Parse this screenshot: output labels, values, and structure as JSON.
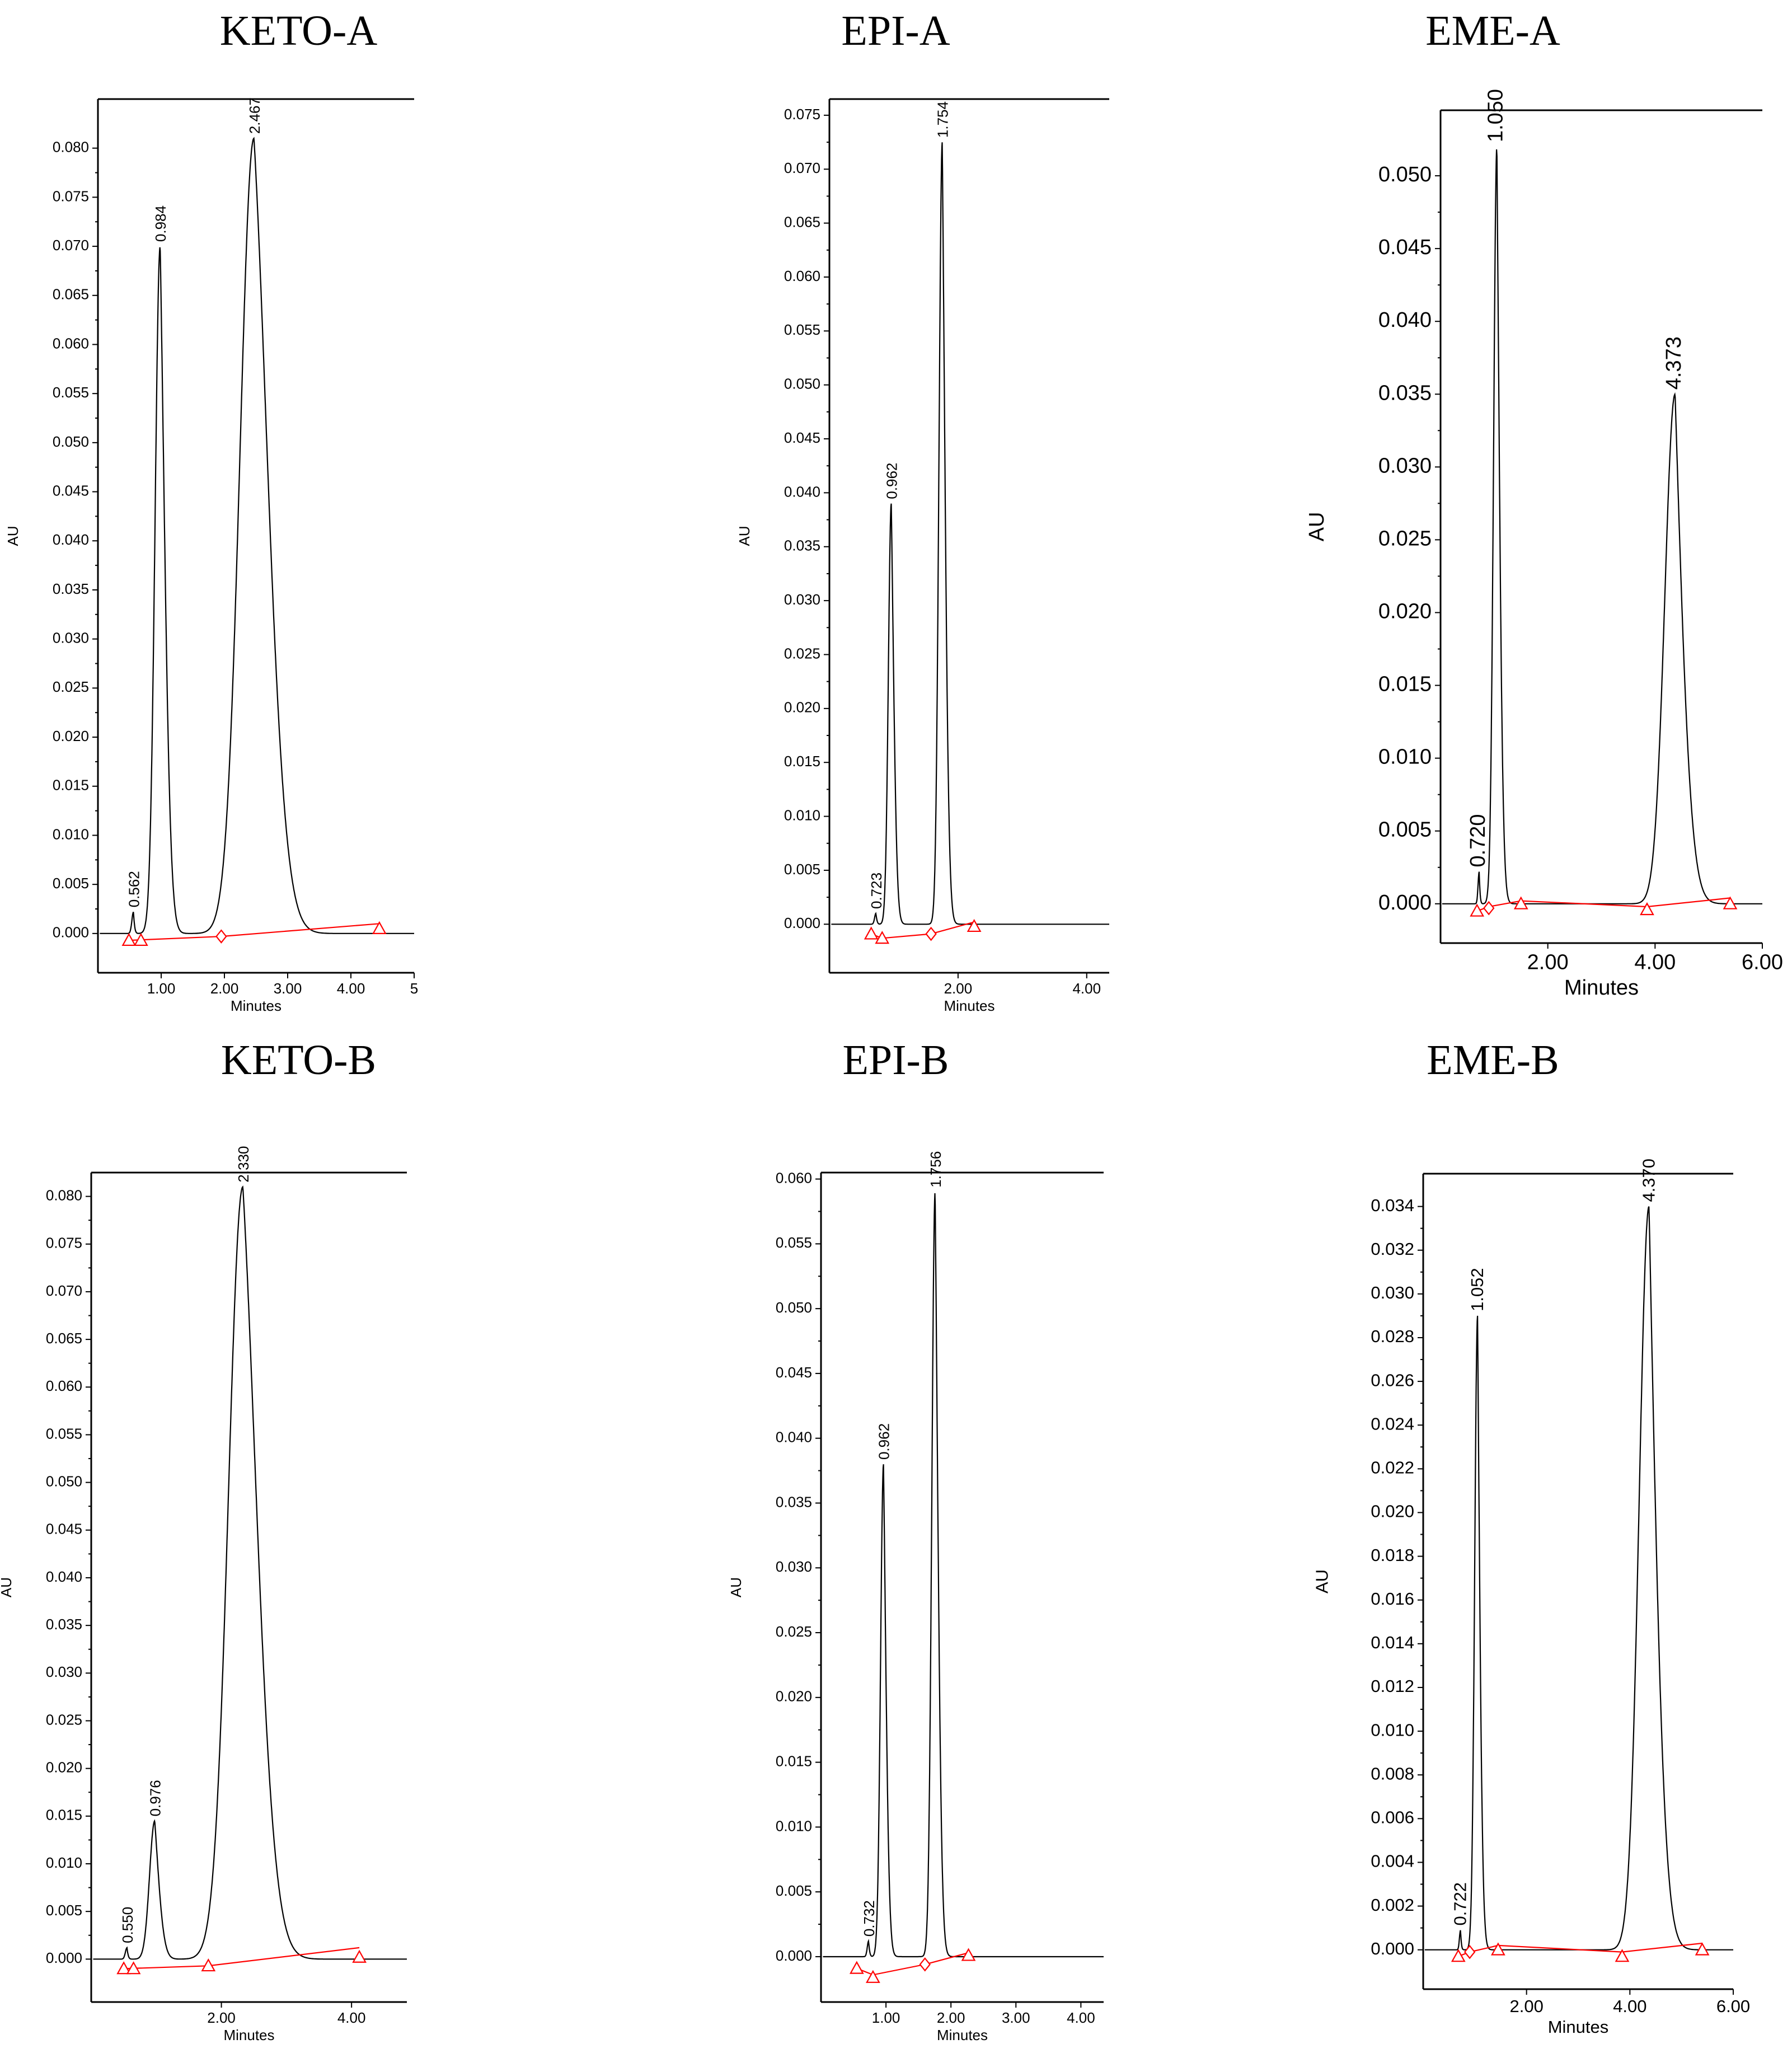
{
  "chart_data": [
    {
      "id": "keto-a",
      "type": "line",
      "title": "KETO-A",
      "xlabel": "Minutes",
      "ylabel": "AU",
      "xlim": [
        0,
        5.0
      ],
      "ylim": [
        -0.004,
        0.085
      ],
      "xticks": [
        1,
        2,
        3,
        4,
        5
      ],
      "xtick_labels": [
        "1.00",
        "2.00",
        "3.00",
        "4.00",
        "5"
      ],
      "yticks": [
        0,
        0.005,
        0.01,
        0.015,
        0.02,
        0.025,
        0.03,
        0.035,
        0.04,
        0.045,
        0.05,
        0.055,
        0.06,
        0.065,
        0.07,
        0.075,
        0.08
      ],
      "ytick_labels": [
        "0.000",
        "0.005",
        "0.010",
        "0.015",
        "0.020",
        "0.025",
        "0.030",
        "0.035",
        "0.040",
        "0.045",
        "0.050",
        "0.055",
        "0.060",
        "0.065",
        "0.070",
        "0.075",
        "0.080"
      ],
      "peaks": [
        {
          "rt": 0.562,
          "label": "0.562",
          "height": 0.0022,
          "w": 0.025,
          "tail": 0.02
        },
        {
          "rt": 0.984,
          "label": "0.984",
          "height": 0.07,
          "w": 0.08,
          "tail": 0.2
        },
        {
          "rt": 2.467,
          "label": "2.467",
          "height": 0.081,
          "w": 0.22,
          "tail": 0.75
        }
      ],
      "markers": [
        {
          "x": 0.49,
          "y": -0.0007,
          "shape": "triangle"
        },
        {
          "x": 0.68,
          "y": -0.0007,
          "shape": "triangle"
        },
        {
          "x": 1.95,
          "y": -0.0003,
          "shape": "diamond"
        },
        {
          "x": 4.45,
          "y": 0.0005,
          "shape": "triangle"
        }
      ],
      "baseline": [
        [
          0.49,
          -0.0007
        ],
        [
          1.95,
          -0.0003
        ],
        [
          4.45,
          0.001
        ]
      ]
    },
    {
      "id": "epi-a",
      "type": "line",
      "title": "EPI-A",
      "xlabel": "Minutes",
      "ylabel": "AU",
      "xlim": [
        0,
        4.35
      ],
      "ylim": [
        -0.0045,
        0.0765
      ],
      "xticks": [
        2,
        4
      ],
      "xtick_labels": [
        "2.00",
        "4.00"
      ],
      "yticks": [
        0,
        0.005,
        0.01,
        0.015,
        0.02,
        0.025,
        0.03,
        0.035,
        0.04,
        0.045,
        0.05,
        0.055,
        0.06,
        0.065,
        0.07,
        0.075
      ],
      "ytick_labels": [
        "0.000",
        "0.005",
        "0.010",
        "0.015",
        "0.020",
        "0.025",
        "0.030",
        "0.035",
        "0.040",
        "0.045",
        "0.050",
        "0.055",
        "0.060",
        "0.065",
        "0.070",
        "0.075"
      ],
      "peaks": [
        {
          "rt": 0.723,
          "label": "0.723",
          "height": 0.001,
          "w": 0.02,
          "tail": 0.02
        },
        {
          "rt": 0.962,
          "label": "0.962",
          "height": 0.039,
          "w": 0.045,
          "tail": 0.1
        },
        {
          "rt": 1.754,
          "label": "1.754",
          "height": 0.0725,
          "w": 0.05,
          "tail": 0.12
        }
      ],
      "markers": [
        {
          "x": 0.65,
          "y": -0.0009,
          "shape": "triangle"
        },
        {
          "x": 0.82,
          "y": -0.0013,
          "shape": "triangle"
        },
        {
          "x": 1.58,
          "y": -0.0009,
          "shape": "diamond"
        },
        {
          "x": 2.25,
          "y": -0.0002,
          "shape": "triangle"
        }
      ],
      "baseline": [
        [
          0.65,
          -0.0009
        ],
        [
          0.82,
          -0.0013
        ],
        [
          1.58,
          -0.0009
        ],
        [
          2.25,
          0.0002
        ]
      ]
    },
    {
      "id": "eme-a",
      "type": "line",
      "title": "EME-A",
      "xlabel": "Minutes",
      "ylabel": "AU",
      "xlim": [
        0,
        6.0
      ],
      "ylim": [
        -0.0027,
        0.0545
      ],
      "xticks": [
        2,
        4,
        6
      ],
      "xtick_labels": [
        "2.00",
        "4.00",
        "6.00"
      ],
      "yticks": [
        0,
        0.005,
        0.01,
        0.015,
        0.02,
        0.025,
        0.03,
        0.035,
        0.04,
        0.045,
        0.05
      ],
      "ytick_labels": [
        "0.000",
        "0.005",
        "0.010",
        "0.015",
        "0.020",
        "0.025",
        "0.030",
        "0.035",
        "0.040",
        "0.045",
        "0.050"
      ],
      "peaks": [
        {
          "rt": 0.72,
          "label": "0.720",
          "height": 0.0022,
          "w": 0.02,
          "tail": 0.02
        },
        {
          "rt": 1.05,
          "label": "1.050",
          "height": 0.052,
          "w": 0.06,
          "tail": 0.12
        },
        {
          "rt": 4.373,
          "label": "4.373",
          "height": 0.035,
          "w": 0.19,
          "tail": 0.3
        }
      ],
      "markers": [
        {
          "x": 0.68,
          "y": -0.0005,
          "shape": "triangle"
        },
        {
          "x": 0.9,
          "y": -0.0003,
          "shape": "diamond"
        },
        {
          "x": 1.5,
          "y": 0.0,
          "shape": "triangle"
        },
        {
          "x": 3.85,
          "y": -0.0004,
          "shape": "triangle"
        },
        {
          "x": 5.4,
          "y": 0.0,
          "shape": "triangle"
        }
      ],
      "baseline": [
        [
          0.68,
          -0.0005
        ],
        [
          0.9,
          -0.0002
        ],
        [
          1.5,
          0.0002
        ],
        [
          3.85,
          -0.0002
        ],
        [
          5.4,
          0.0004
        ]
      ]
    },
    {
      "id": "keto-b",
      "type": "line",
      "title": "KETO-B",
      "xlabel": "Minutes",
      "ylabel": "AU",
      "xlim": [
        0,
        4.85
      ],
      "ylim": [
        -0.0045,
        0.0825
      ],
      "xticks": [
        2,
        4
      ],
      "xtick_labels": [
        "2.00",
        "4.00"
      ],
      "yticks": [
        0,
        0.005,
        0.01,
        0.015,
        0.02,
        0.025,
        0.03,
        0.035,
        0.04,
        0.045,
        0.05,
        0.055,
        0.06,
        0.065,
        0.07,
        0.075,
        0.08
      ],
      "ytick_labels": [
        "0.000",
        "0.005",
        "0.010",
        "0.015",
        "0.020",
        "0.025",
        "0.030",
        "0.035",
        "0.040",
        "0.045",
        "0.050",
        "0.055",
        "0.060",
        "0.065",
        "0.070",
        "0.075",
        "0.080"
      ],
      "peaks": [
        {
          "rt": 0.55,
          "label": "0.550",
          "height": 0.0012,
          "w": 0.025,
          "tail": 0.02
        },
        {
          "rt": 0.976,
          "label": "0.976",
          "height": 0.0145,
          "w": 0.08,
          "tail": 0.15
        },
        {
          "rt": 2.33,
          "label": "2.330",
          "height": 0.081,
          "w": 0.22,
          "tail": 0.7
        }
      ],
      "markers": [
        {
          "x": 0.5,
          "y": -0.001,
          "shape": "triangle"
        },
        {
          "x": 0.65,
          "y": -0.001,
          "shape": "triangle"
        },
        {
          "x": 1.8,
          "y": -0.0007,
          "shape": "triangle"
        },
        {
          "x": 4.12,
          "y": 0.0002,
          "shape": "triangle"
        }
      ],
      "baseline": [
        [
          0.5,
          -0.001
        ],
        [
          1.8,
          -0.0007
        ],
        [
          4.12,
          0.0012
        ]
      ]
    },
    {
      "id": "epi-b",
      "type": "line",
      "title": "EPI-B",
      "xlabel": "Minutes",
      "ylabel": "AU",
      "xlim": [
        0,
        4.35
      ],
      "ylim": [
        -0.0035,
        0.0605
      ],
      "xticks": [
        1,
        2,
        3,
        4
      ],
      "xtick_labels": [
        "1.00",
        "2.00",
        "3.00",
        "4.00"
      ],
      "yticks": [
        0,
        0.005,
        0.01,
        0.015,
        0.02,
        0.025,
        0.03,
        0.035,
        0.04,
        0.045,
        0.05,
        0.055,
        0.06
      ],
      "ytick_labels": [
        "0.000",
        "0.005",
        "0.010",
        "0.015",
        "0.020",
        "0.025",
        "0.030",
        "0.035",
        "0.040",
        "0.045",
        "0.050",
        "0.055",
        "0.060"
      ],
      "peaks": [
        {
          "rt": 0.732,
          "label": "0.732",
          "height": 0.0012,
          "w": 0.02,
          "tail": 0.02
        },
        {
          "rt": 0.962,
          "label": "0.962",
          "height": 0.038,
          "w": 0.045,
          "tail": 0.1
        },
        {
          "rt": 1.756,
          "label": "1.756",
          "height": 0.059,
          "w": 0.05,
          "tail": 0.12
        }
      ],
      "markers": [
        {
          "x": 0.55,
          "y": -0.0009,
          "shape": "triangle"
        },
        {
          "x": 0.8,
          "y": -0.0016,
          "shape": "triangle"
        },
        {
          "x": 1.6,
          "y": -0.0006,
          "shape": "diamond"
        },
        {
          "x": 2.27,
          "y": 0.0001,
          "shape": "triangle"
        }
      ],
      "baseline": [
        [
          0.55,
          -0.0009
        ],
        [
          0.8,
          -0.0014
        ],
        [
          1.6,
          -0.0006
        ],
        [
          2.27,
          0.0003
        ]
      ]
    },
    {
      "id": "eme-b",
      "type": "line",
      "title": "EME-B",
      "xlabel": "Minutes",
      "ylabel": "AU",
      "xlim": [
        0,
        6.0
      ],
      "ylim": [
        -0.0018,
        0.0355
      ],
      "xticks": [
        2,
        4,
        6
      ],
      "xtick_labels": [
        "2.00",
        "4.00",
        "6.00"
      ],
      "yticks": [
        0,
        0.002,
        0.004,
        0.006,
        0.008,
        0.01,
        0.012,
        0.014,
        0.016,
        0.018,
        0.02,
        0.022,
        0.024,
        0.026,
        0.028,
        0.03,
        0.032,
        0.034
      ],
      "ytick_labels": [
        "0.000",
        "0.002",
        "0.004",
        "0.006",
        "0.008",
        "0.010",
        "0.012",
        "0.014",
        "0.016",
        "0.018",
        "0.020",
        "0.022",
        "0.024",
        "0.026",
        "0.028",
        "0.030",
        "0.032",
        "0.034"
      ],
      "peaks": [
        {
          "rt": 0.722,
          "label": "0.722",
          "height": 0.0009,
          "w": 0.02,
          "tail": 0.02
        },
        {
          "rt": 1.052,
          "label": "1.052",
          "height": 0.029,
          "w": 0.055,
          "tail": 0.1
        },
        {
          "rt": 4.37,
          "label": "4.370",
          "height": 0.034,
          "w": 0.19,
          "tail": 0.3
        }
      ],
      "markers": [
        {
          "x": 0.68,
          "y": -0.0003,
          "shape": "triangle"
        },
        {
          "x": 0.9,
          "y": -0.0001,
          "shape": "diamond"
        },
        {
          "x": 1.45,
          "y": 0.0,
          "shape": "triangle"
        },
        {
          "x": 3.85,
          "y": -0.0003,
          "shape": "triangle"
        },
        {
          "x": 5.4,
          "y": 0.0,
          "shape": "triangle"
        }
      ],
      "baseline": [
        [
          0.68,
          -0.0003
        ],
        [
          0.9,
          -0.0001
        ],
        [
          1.45,
          0.0002
        ],
        [
          3.85,
          -0.0001
        ],
        [
          5.4,
          0.0003
        ]
      ]
    }
  ],
  "colors": {
    "trace": "#000000",
    "baseline": "#ff0000",
    "marker": "#ff0000"
  }
}
